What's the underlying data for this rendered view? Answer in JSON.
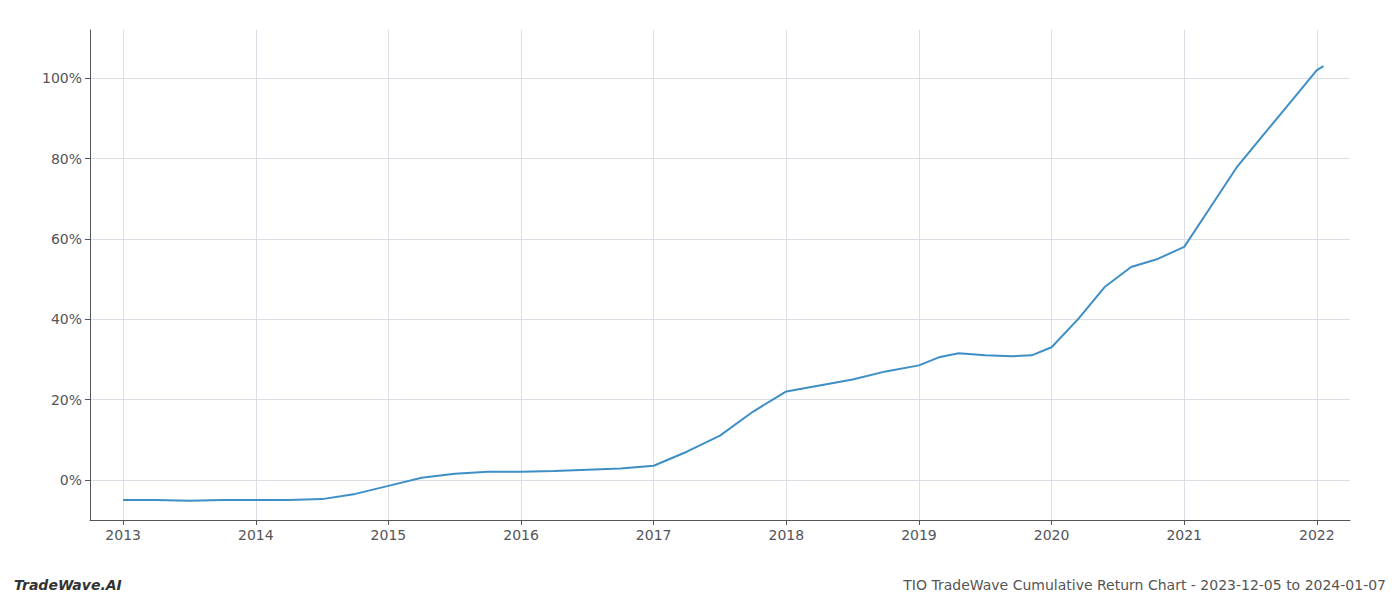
{
  "chart_data": {
    "type": "line",
    "x": [
      2013.0,
      2013.25,
      2013.5,
      2013.75,
      2014.0,
      2014.25,
      2014.5,
      2014.75,
      2015.0,
      2015.25,
      2015.5,
      2015.75,
      2016.0,
      2016.25,
      2016.5,
      2016.75,
      2017.0,
      2017.25,
      2017.5,
      2017.75,
      2018.0,
      2018.25,
      2018.5,
      2018.75,
      2019.0,
      2019.15,
      2019.3,
      2019.5,
      2019.7,
      2019.85,
      2020.0,
      2020.2,
      2020.4,
      2020.6,
      2020.8,
      2021.0,
      2021.2,
      2021.4,
      2021.6,
      2021.8,
      2022.0,
      2022.05
    ],
    "values": [
      -5.0,
      -5.0,
      -5.2,
      -5.0,
      -5.0,
      -5.0,
      -4.8,
      -3.5,
      -1.5,
      0.5,
      1.5,
      2.0,
      2.0,
      2.2,
      2.5,
      2.8,
      3.5,
      7.0,
      11.0,
      17.0,
      22.0,
      23.5,
      25.0,
      27.0,
      28.5,
      30.5,
      31.5,
      31.0,
      30.8,
      31.0,
      33.0,
      40.0,
      48.0,
      53.0,
      55.0,
      58.0,
      68.0,
      78.0,
      86.0,
      94.0,
      102.0,
      103.0
    ],
    "color": "#3d8fc6",
    "xlim": [
      2012.75,
      2022.25
    ],
    "ylim": [
      -10,
      112
    ],
    "xticks": [
      2013,
      2014,
      2015,
      2016,
      2017,
      2018,
      2019,
      2020,
      2021,
      2022
    ],
    "yticks": [
      {
        "value": 0,
        "label": "0%"
      },
      {
        "value": 20,
        "label": "20%"
      },
      {
        "value": 40,
        "label": "40%"
      },
      {
        "value": 60,
        "label": "60%"
      },
      {
        "value": 80,
        "label": "80%"
      },
      {
        "value": 100,
        "label": "100%"
      }
    ],
    "grid": true,
    "annotations": [
      "TradeWave.AI",
      "TIO TradeWave Cumulative Return Chart - 2023-12-05 to 2024-01-07"
    ]
  }
}
